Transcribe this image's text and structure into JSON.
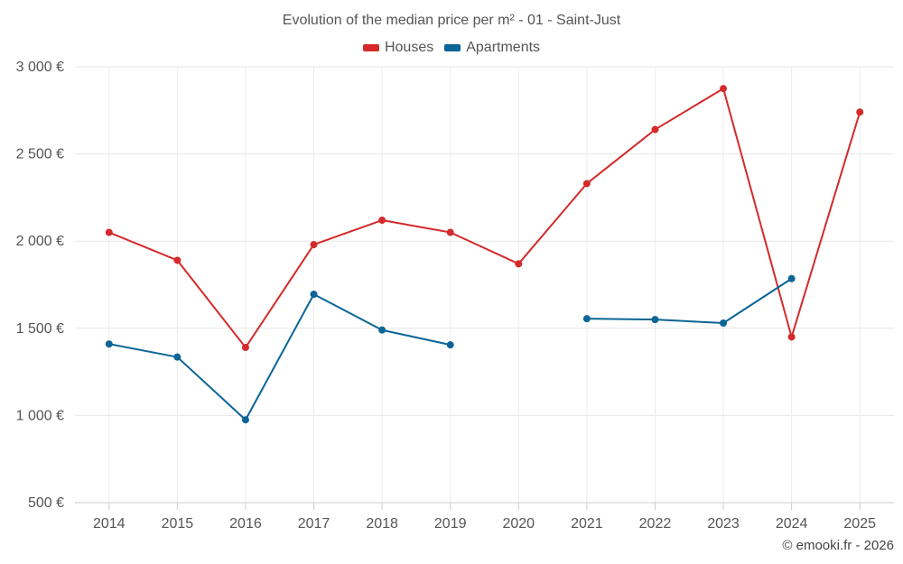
{
  "chart_data": {
    "type": "line",
    "title": "Evolution of the median price per m² - 01 - Saint-Just",
    "xlabel": "",
    "ylabel": "",
    "categories": [
      "2014",
      "2015",
      "2016",
      "2017",
      "2018",
      "2019",
      "2020",
      "2021",
      "2022",
      "2023",
      "2024",
      "2025"
    ],
    "ylim": [
      500,
      3000
    ],
    "yticks": [
      500,
      1000,
      1500,
      2000,
      2500,
      3000
    ],
    "ytick_labels": [
      "500 €",
      "1 000 €",
      "1 500 €",
      "2 000 €",
      "2 500 €",
      "3 000 €"
    ],
    "grid": true,
    "legend_position": "top-center",
    "series": [
      {
        "name": "Houses",
        "color": "#d42a2a",
        "values": [
          2050,
          1890,
          1390,
          1980,
          2120,
          2050,
          1870,
          2330,
          2640,
          2875,
          1450,
          2740
        ]
      },
      {
        "name": "Apartments",
        "color": "#0b6596",
        "values": [
          1410,
          1335,
          975,
          1695,
          1490,
          1405,
          null,
          1555,
          1550,
          1530,
          1785,
          null
        ]
      }
    ]
  },
  "credit": "© emooki.fr - 2026"
}
